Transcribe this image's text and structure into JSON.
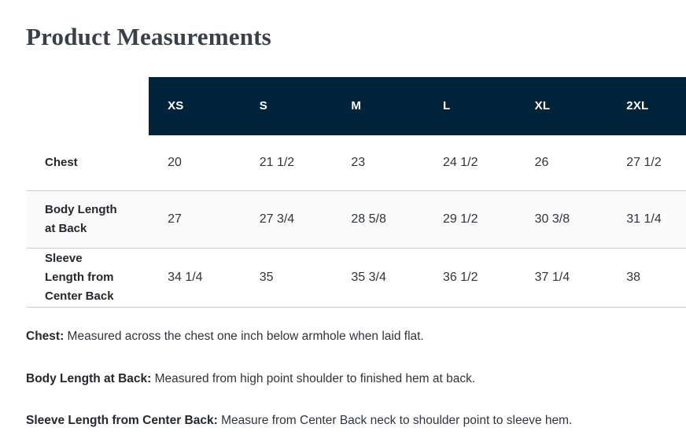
{
  "page": {
    "title": "Product Measurements"
  },
  "colors": {
    "header_bg": "#02243a",
    "header_text": "#ffffff",
    "alt_row_bg": "#fafafa",
    "divider": "#cbcbcb",
    "title_text": "#3a4049",
    "body_text": "#2f353b"
  },
  "table": {
    "size_headers": [
      "XS",
      "S",
      "M",
      "L",
      "XL",
      "2XL"
    ],
    "rows": [
      {
        "label": "Chest",
        "values": [
          "20",
          "21 1/2",
          "23",
          "24 1/2",
          "26",
          "27 1/2"
        ]
      },
      {
        "label": "Body Length\nat Back",
        "values": [
          "27",
          "27 3/4",
          "28 5/8",
          "29 1/2",
          "30 3/8",
          "31 1/4"
        ]
      },
      {
        "label": "Sleeve\nLength from\nCenter Back",
        "values": [
          "34 1/4",
          "35",
          "35 3/4",
          "36 1/2",
          "37 1/4",
          "38"
        ]
      }
    ]
  },
  "footer": {
    "notes": [
      {
        "label": "Chest:",
        "text": "Measured across the chest one inch below armhole when laid flat."
      },
      {
        "label": "Body Length at Back:",
        "text": "Measured from high point shoulder to finished hem at back."
      },
      {
        "label": "Sleeve Length from Center Back:",
        "text": "Measure from Center Back neck to shoulder point to sleeve hem."
      }
    ]
  }
}
